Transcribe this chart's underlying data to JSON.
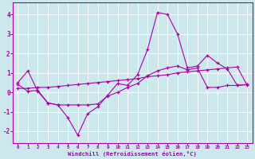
{
  "xlabel": "Windchill (Refroidissement éolien,°C)",
  "xlim": [
    -0.5,
    23.5
  ],
  "ylim": [
    -2.6,
    4.6
  ],
  "yticks": [
    -2,
    -1,
    0,
    1,
    2,
    3,
    4
  ],
  "xticks": [
    0,
    1,
    2,
    3,
    4,
    5,
    6,
    7,
    8,
    9,
    10,
    11,
    12,
    13,
    14,
    15,
    16,
    17,
    18,
    19,
    20,
    21,
    22,
    23
  ],
  "bg_color": "#cce8ec",
  "line_color": "#aa00aa",
  "grid_color": "#ffffff",
  "lines": [
    {
      "x": [
        0,
        1,
        2,
        3,
        4,
        5,
        6,
        7,
        8,
        9,
        10,
        11,
        12,
        13,
        14,
        15,
        16,
        17,
        18,
        19,
        20,
        21,
        22,
        23
      ],
      "y": [
        0.5,
        1.1,
        0.05,
        -0.55,
        -0.65,
        -1.3,
        -2.2,
        -1.1,
        -0.75,
        -0.15,
        0.45,
        0.35,
        0.9,
        2.2,
        4.1,
        4.0,
        3.0,
        1.25,
        1.35,
        1.9,
        1.5,
        1.2,
        0.35,
        0.4
      ]
    },
    {
      "x": [
        0,
        1,
        2,
        3,
        4,
        5,
        6,
        7,
        8,
        9,
        10,
        11,
        12,
        13,
        14,
        15,
        16,
        17,
        18,
        19,
        20,
        21,
        22,
        23
      ],
      "y": [
        0.4,
        0.05,
        0.1,
        -0.55,
        -0.65,
        -0.65,
        -0.65,
        -0.65,
        -0.6,
        -0.2,
        0.0,
        0.25,
        0.45,
        0.85,
        1.1,
        1.25,
        1.35,
        1.15,
        1.25,
        0.25,
        0.25,
        0.35,
        0.35,
        0.4
      ]
    },
    {
      "x": [
        0,
        1,
        2,
        3,
        4,
        5,
        6,
        7,
        8,
        9,
        10,
        11,
        12,
        13,
        14,
        15,
        16,
        17,
        18,
        19,
        20,
        21,
        22,
        23
      ],
      "y": [
        0.2,
        0.2,
        0.25,
        0.25,
        0.3,
        0.35,
        0.4,
        0.45,
        0.5,
        0.55,
        0.6,
        0.65,
        0.7,
        0.8,
        0.85,
        0.9,
        1.0,
        1.05,
        1.1,
        1.15,
        1.2,
        1.25,
        1.3,
        0.35
      ]
    }
  ]
}
